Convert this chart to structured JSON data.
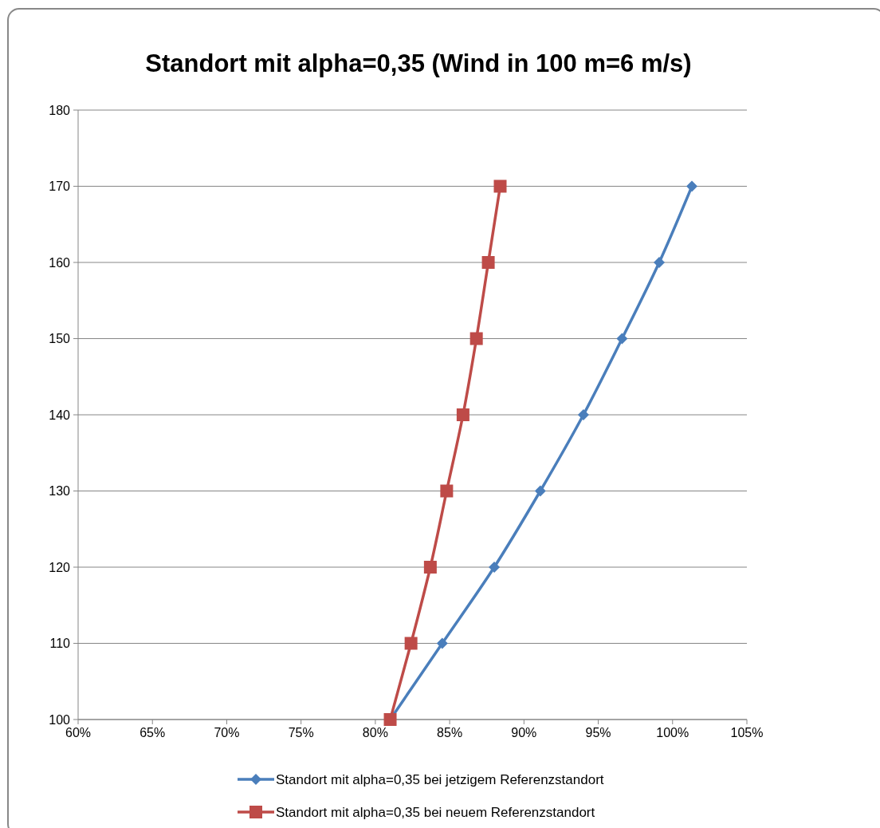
{
  "chart_data": {
    "type": "line",
    "title": "Standort mit alpha=0,35 (Wind in 100 m=6 m/s)",
    "xlim": [
      60,
      105
    ],
    "xticks": [
      {
        "value": 60,
        "label": "60%"
      },
      {
        "value": 65,
        "label": "65%"
      },
      {
        "value": 70,
        "label": "70%"
      },
      {
        "value": 75,
        "label": "75%"
      },
      {
        "value": 80,
        "label": "80%"
      },
      {
        "value": 85,
        "label": "85%"
      },
      {
        "value": 90,
        "label": "90%"
      },
      {
        "value": 95,
        "label": "95%"
      },
      {
        "value": 100,
        "label": "100%"
      },
      {
        "value": 105,
        "label": "105%"
      }
    ],
    "ylim": [
      100,
      180
    ],
    "yticks": [
      100,
      110,
      120,
      130,
      140,
      150,
      160,
      170,
      180
    ],
    "grid": "y",
    "legend": "bottom",
    "series": [
      {
        "name": "Standort mit alpha=0,35 bei jetzigem Referenzstandort",
        "color": "#4a7ebb",
        "marker": "diamond",
        "x": [
          81.0,
          84.5,
          88.0,
          91.1,
          94.0,
          96.6,
          99.1,
          101.3
        ],
        "values": [
          100,
          110,
          120,
          130,
          140,
          150,
          160,
          170
        ]
      },
      {
        "name": "Standort mit alpha=0,35 bei neuem Referenzstandort",
        "color": "#be4b48",
        "marker": "square",
        "x": [
          81.0,
          82.4,
          83.7,
          84.8,
          85.9,
          86.8,
          87.6,
          88.4
        ],
        "values": [
          100,
          110,
          120,
          130,
          140,
          150,
          160,
          170
        ]
      }
    ]
  }
}
